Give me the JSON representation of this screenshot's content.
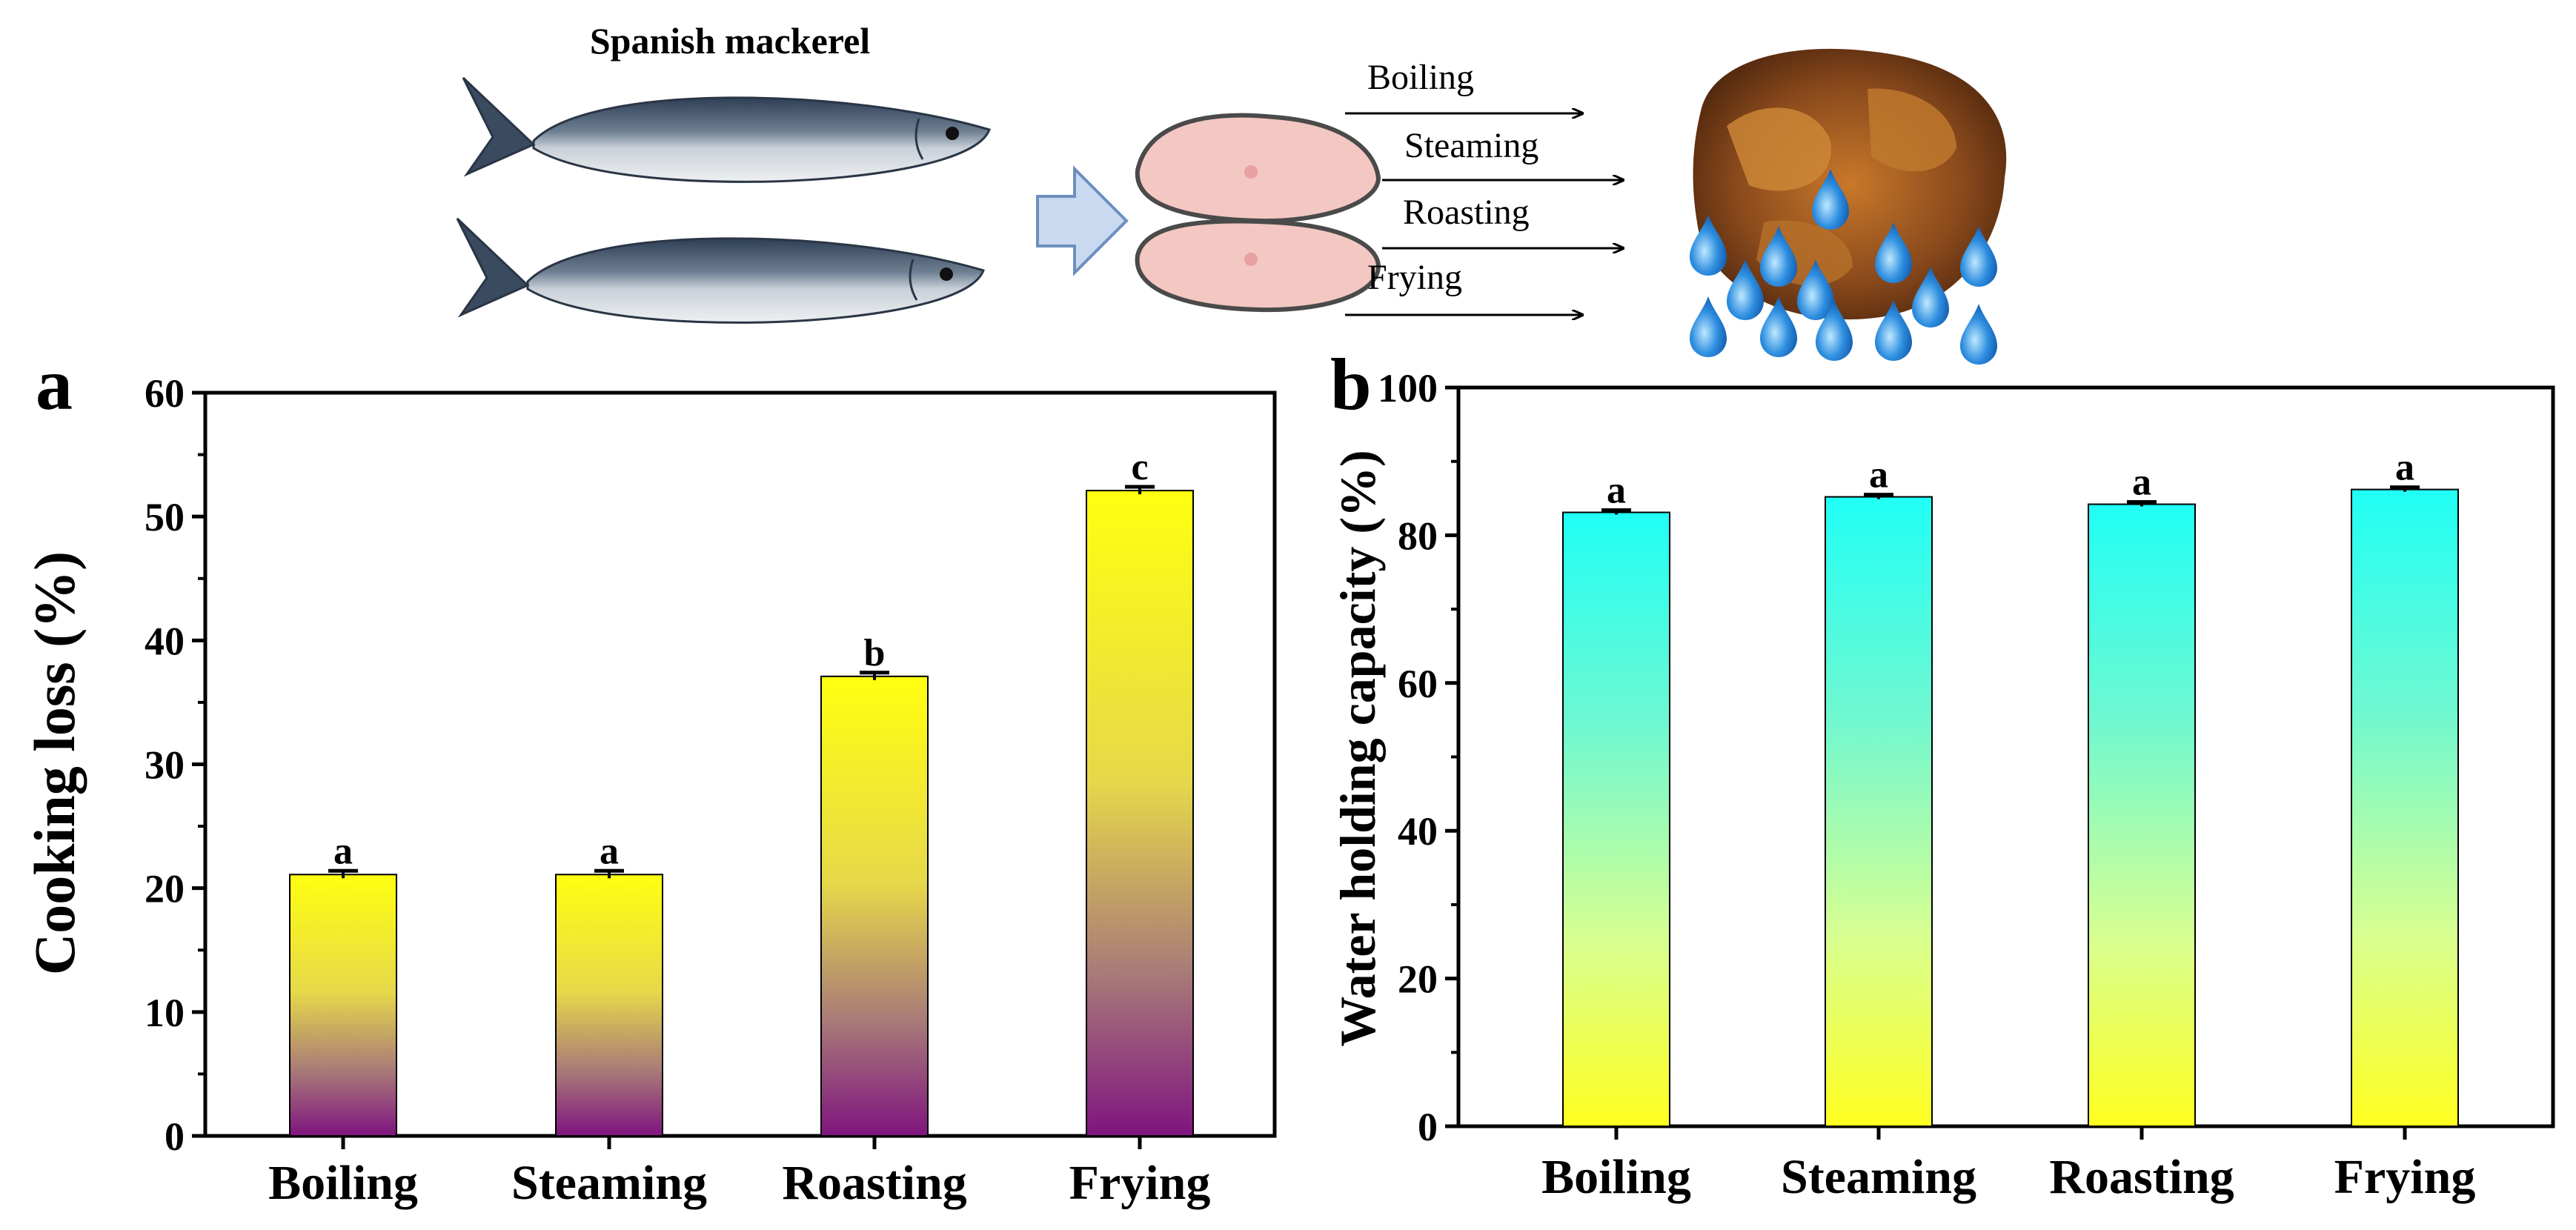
{
  "figure": {
    "title": "Spanish mackerel",
    "methods": [
      "Boiling",
      "Steaming",
      "Roasting",
      "Frying"
    ]
  },
  "chart_data": [
    {
      "panel": "a",
      "type": "bar",
      "categories": [
        "Boiling",
        "Steaming",
        "Roasting",
        "Frying"
      ],
      "values": [
        21.1,
        21.1,
        37.1,
        52.1
      ],
      "errors": [
        0.3,
        0.3,
        0.3,
        0.3
      ],
      "significance": [
        "a",
        "a",
        "b",
        "c"
      ],
      "ylabel": "Cooking loss (%)",
      "xlabel": "",
      "ylim": [
        0,
        60
      ],
      "yticks": [
        0,
        10,
        20,
        30,
        40,
        50,
        60
      ],
      "gradient": {
        "top": "#ffff10",
        "bottom": "#7f147f"
      }
    },
    {
      "panel": "b",
      "type": "bar",
      "categories": [
        "Boiling",
        "Steaming",
        "Roasting",
        "Frying"
      ],
      "values": [
        83.1,
        85.2,
        84.2,
        86.2
      ],
      "errors": [
        0.3,
        0.3,
        0.3,
        0.3
      ],
      "significance": [
        "a",
        "a",
        "a",
        "a"
      ],
      "ylabel": "Water holding capacity (%)",
      "xlabel": "",
      "ylim": [
        0,
        100
      ],
      "yticks": [
        0,
        20,
        40,
        60,
        80,
        100
      ],
      "gradient": {
        "top": "#20fff5",
        "bottom": "#ffff20"
      }
    }
  ]
}
